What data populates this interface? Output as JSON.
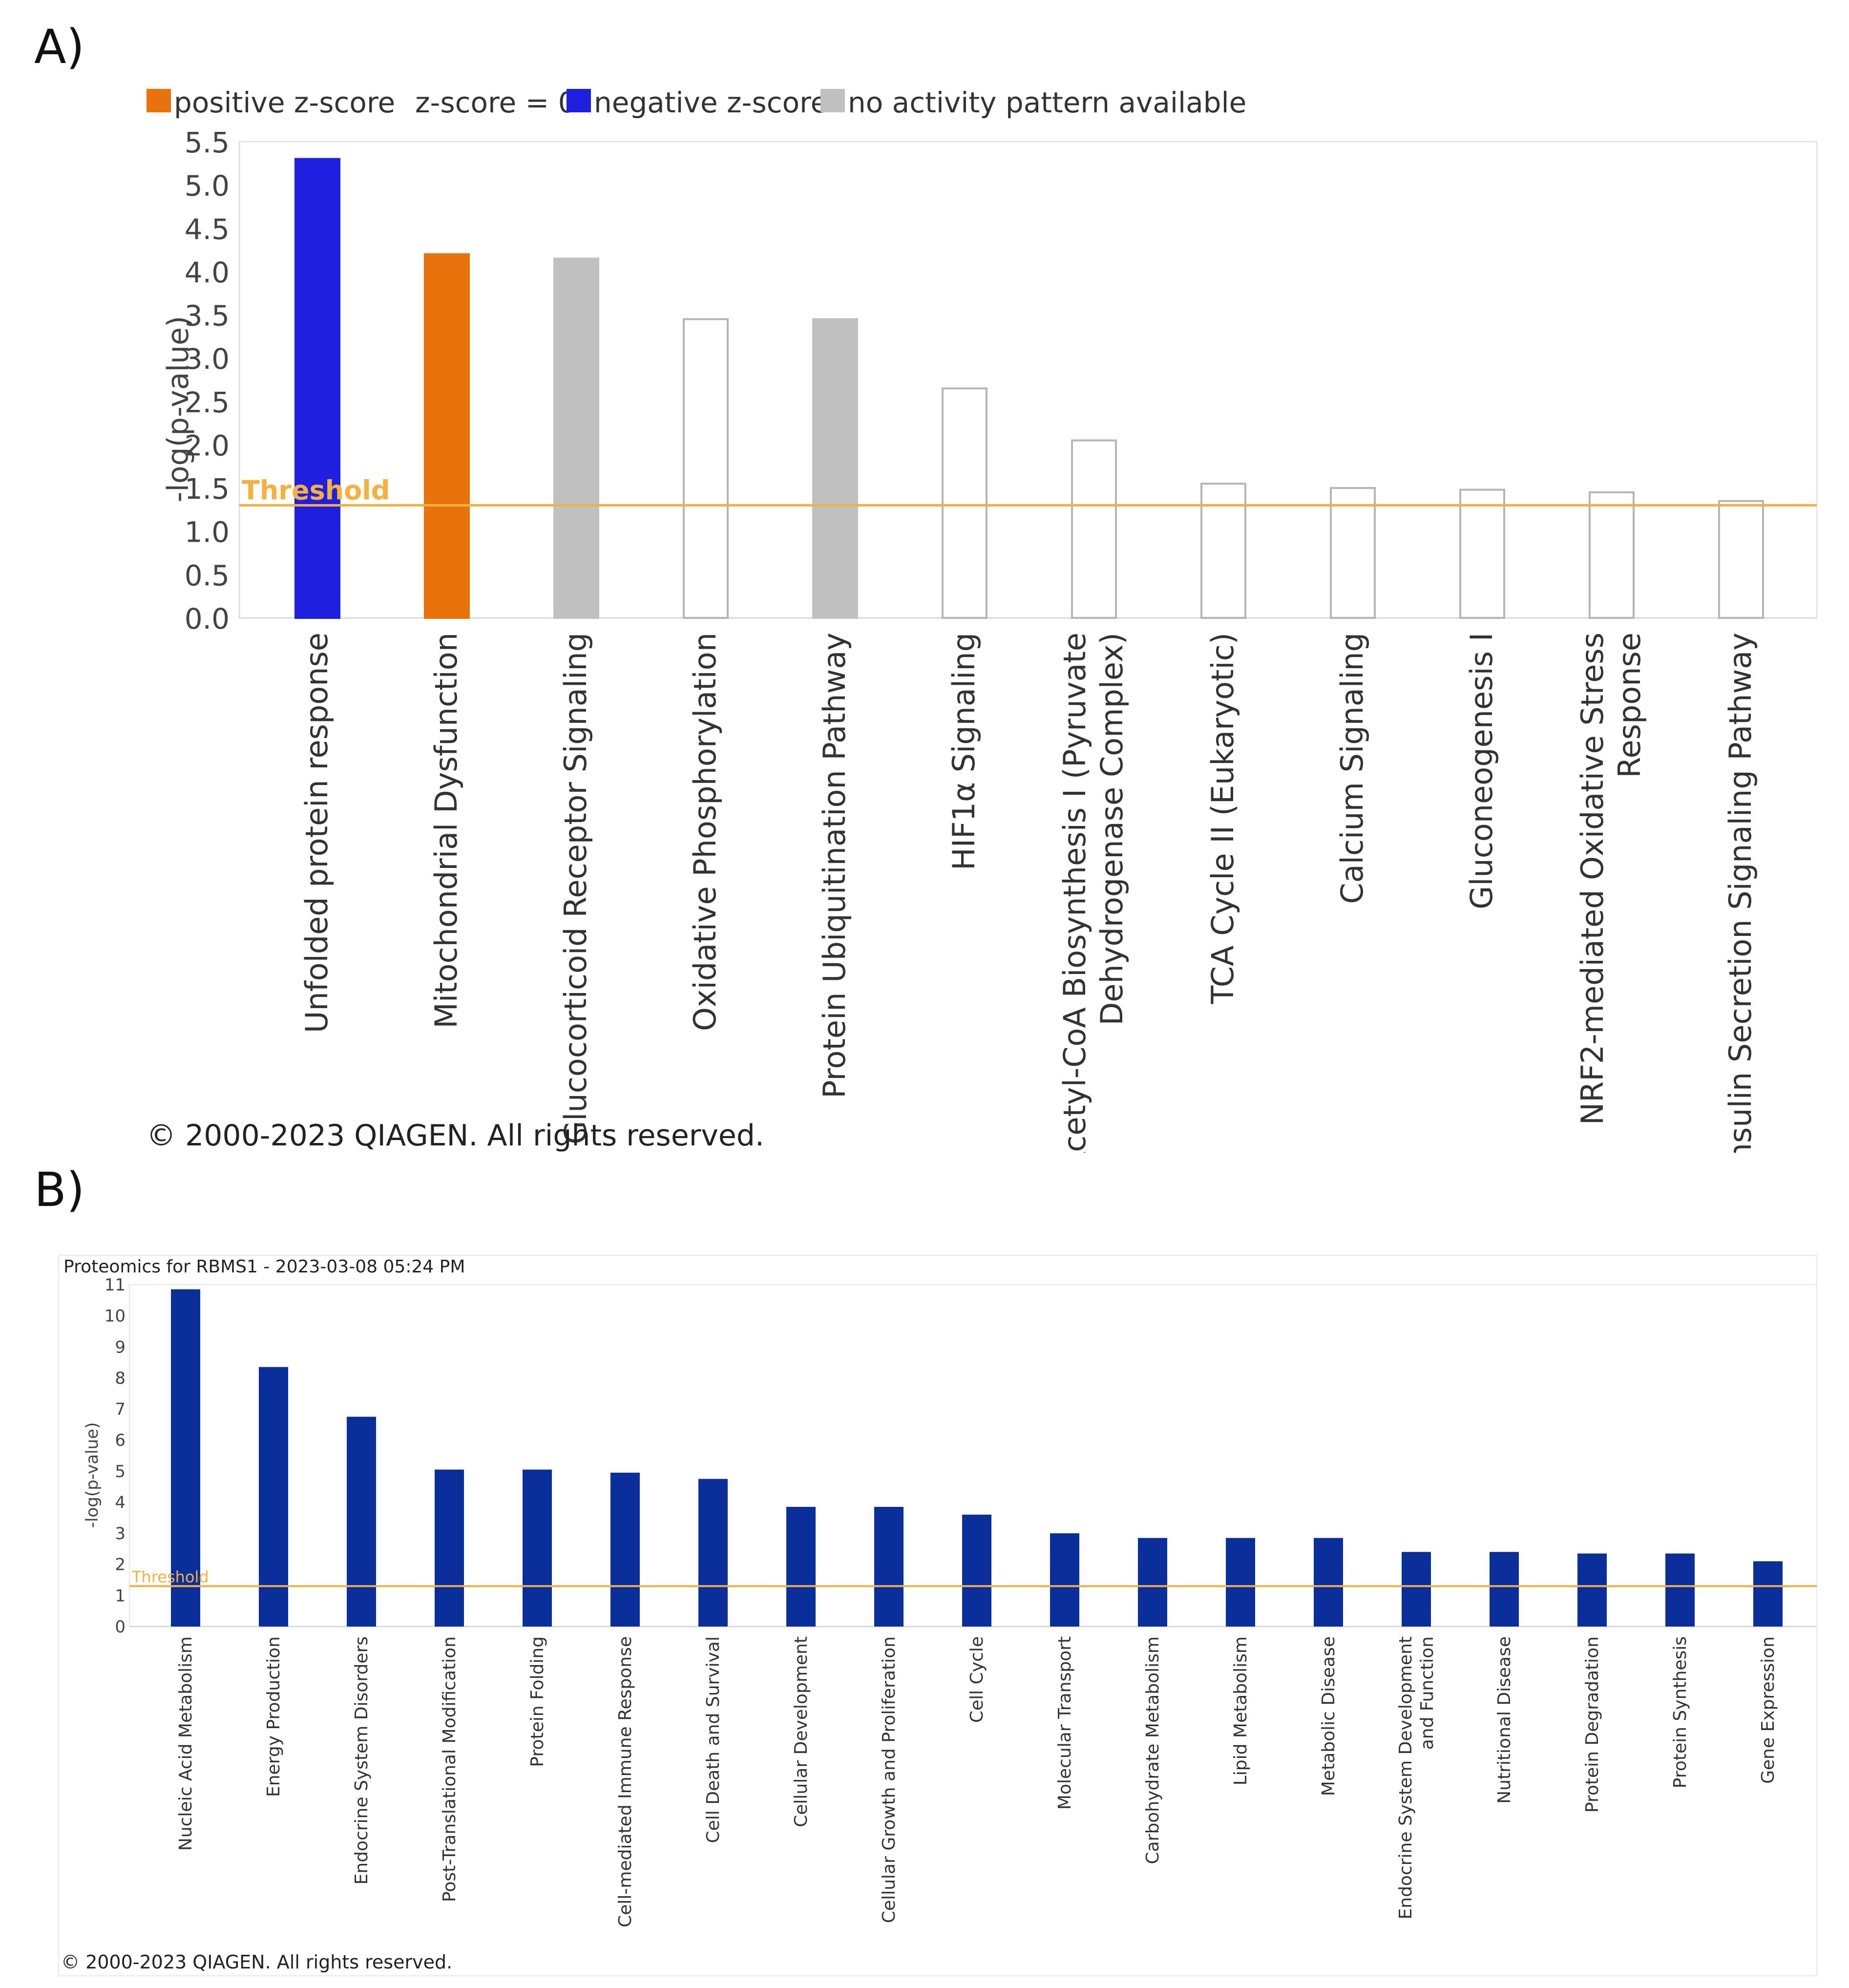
{
  "panel_a": {
    "label": "A)"
  },
  "panel_b": {
    "label": "B)"
  },
  "chart_data": [
    {
      "type": "bar",
      "panel": "A)",
      "legend": [
        {
          "label": "positive z-score",
          "color": "#e8720c"
        },
        {
          "label": "z-score = 0",
          "color": "#ffffff"
        },
        {
          "label": "negative z-score",
          "color": "#1f1fe0"
        },
        {
          "label": "no activity pattern available",
          "color": "#c0c0c0"
        }
      ],
      "ylabel": "-log(p-value)",
      "ylim": [
        0,
        5.5
      ],
      "yticks": [
        "0.0",
        "0.5",
        "1.0",
        "1.5",
        "2.0",
        "2.5",
        "3.0",
        "3.5",
        "4.0",
        "4.5",
        "5.0",
        "5.5"
      ],
      "threshold": {
        "label": "Threshold",
        "value": 1.3,
        "color": "#f5b040"
      },
      "categories": [
        [
          "Unfolded protein response"
        ],
        [
          "Mitochondrial Dysfunction"
        ],
        [
          "Glucocorticoid Receptor Signaling"
        ],
        [
          "Oxidative Phosphorylation"
        ],
        [
          "Protein Ubiquitination Pathway"
        ],
        [
          "HIF1α Signaling"
        ],
        [
          "Acetyl-CoA Biosynthesis I (Pyruvate",
          "Dehydrogenase Complex)"
        ],
        [
          "TCA Cycle II (Eukaryotic)"
        ],
        [
          "Calcium Signaling"
        ],
        [
          "Gluconeogenesis I"
        ],
        [
          "NRF2-mediated Oxidative Stress",
          "Response"
        ],
        [
          "Insulin Secretion Signaling Pathway"
        ]
      ],
      "values": [
        5.3,
        4.2,
        4.15,
        3.45,
        3.45,
        2.65,
        2.05,
        1.55,
        1.5,
        1.48,
        1.45,
        1.35
      ],
      "bar_colors": [
        "#1f1fe0",
        "#e8720c",
        "#c0c0c0",
        "#ffffff",
        "#c0c0c0",
        "#ffffff",
        "#ffffff",
        "#ffffff",
        "#ffffff",
        "#ffffff",
        "#ffffff",
        "#ffffff"
      ],
      "copyright": "© 2000-2023 QIAGEN. All rights reserved."
    },
    {
      "type": "bar",
      "panel": "B)",
      "title": "Proteomics for RBMS1 - 2023-03-08 05:24 PM",
      "ylabel": "-log(p-value)",
      "ylim": [
        0,
        11
      ],
      "yticks": [
        "0",
        "1",
        "2",
        "3",
        "4",
        "5",
        "6",
        "7",
        "8",
        "9",
        "10",
        "11"
      ],
      "threshold": {
        "label": "Threshold",
        "value": 1.3,
        "color": "#f5b040"
      },
      "bar_color": "#0b2f9a",
      "categories": [
        [
          "Nucleic Acid Metabolism"
        ],
        [
          "Energy Production"
        ],
        [
          "Endocrine System Disorders"
        ],
        [
          "Post-Translational Modification"
        ],
        [
          "Protein Folding"
        ],
        [
          "Cell-mediated Immune Response"
        ],
        [
          "Cell Death and Survival"
        ],
        [
          "Cellular Development"
        ],
        [
          "Cellular Growth and Proliferation"
        ],
        [
          "Cell Cycle"
        ],
        [
          "Molecular Transport"
        ],
        [
          "Carbohydrate Metabolism"
        ],
        [
          "Lipid Metabolism"
        ],
        [
          "Metabolic Disease"
        ],
        [
          "Endocrine System Development",
          "and Function"
        ],
        [
          "Nutritional Disease"
        ],
        [
          "Protein Degradation"
        ],
        [
          "Protein Synthesis"
        ],
        [
          "Gene Expression"
        ]
      ],
      "values": [
        10.85,
        8.35,
        6.75,
        5.05,
        5.05,
        4.95,
        4.75,
        3.85,
        3.85,
        3.6,
        3.0,
        2.85,
        2.85,
        2.85,
        2.4,
        2.4,
        2.35,
        2.35,
        2.1
      ],
      "copyright": "© 2000-2023 QIAGEN. All rights reserved."
    }
  ]
}
